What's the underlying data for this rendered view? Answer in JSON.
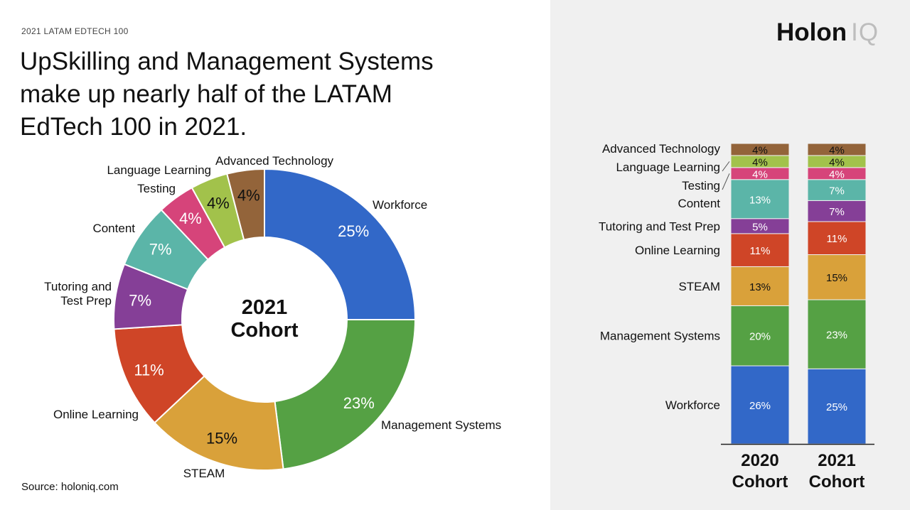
{
  "header": {
    "kicker": "2021 LATAM EDTECH 100",
    "title_lines": [
      "UpSkilling and Management Systems",
      "make up nearly half of the LATAM",
      "EdTech 100 in 2021."
    ]
  },
  "brand": {
    "part1": "Holon",
    "part2": "IQ"
  },
  "footer": {
    "source": "Source: holoniq.com"
  },
  "colors": {
    "Workforce": "#3268c8",
    "Management Systems": "#55a144",
    "STEAM": "#d9a13a",
    "Online Learning": "#cf4527",
    "Tutoring and Test Prep": "#853f97",
    "Content": "#5bb5a8",
    "Testing": "#d6447a",
    "Language Learning": "#a2c24b",
    "Advanced Technology": "#93643a",
    "right_panel_bg": "#f0f0f0"
  },
  "chart_data": [
    {
      "type": "pie",
      "variant": "donut",
      "center_label": [
        "2021",
        "Cohort"
      ],
      "slices": [
        {
          "label": "Workforce",
          "value": 25,
          "text": "25%"
        },
        {
          "label": "Management Systems",
          "value": 23,
          "text": "23%"
        },
        {
          "label": "STEAM",
          "value": 15,
          "text": "15%"
        },
        {
          "label": "Online Learning",
          "value": 11,
          "text": "11%"
        },
        {
          "label": "Tutoring and\nTest Prep",
          "key": "Tutoring and Test Prep",
          "value": 7,
          "text": "7%"
        },
        {
          "label": "Content",
          "value": 7,
          "text": "7%"
        },
        {
          "label": "Testing",
          "value": 4,
          "text": "4%"
        },
        {
          "label": "Language Learning",
          "value": 4,
          "text": "4%"
        },
        {
          "label": "Advanced Technology",
          "value": 4,
          "text": "4%"
        }
      ]
    },
    {
      "type": "bar",
      "stacked": true,
      "normalized": true,
      "categories": [
        "2020 Cohort",
        "2021 Cohort"
      ],
      "category_label_lines": [
        [
          "2020",
          "Cohort"
        ],
        [
          "2021",
          "Cohort"
        ]
      ],
      "series": [
        {
          "name": "Workforce",
          "values": [
            26,
            25
          ]
        },
        {
          "name": "Management Systems",
          "values": [
            20,
            23
          ]
        },
        {
          "name": "STEAM",
          "values": [
            13,
            15
          ]
        },
        {
          "name": "Online Learning",
          "values": [
            11,
            11
          ]
        },
        {
          "name": "Tutoring and Test Prep",
          "values": [
            5,
            7
          ]
        },
        {
          "name": "Content",
          "values": [
            13,
            7
          ]
        },
        {
          "name": "Testing",
          "values": [
            4,
            4
          ]
        },
        {
          "name": "Language Learning",
          "values": [
            4,
            4
          ]
        },
        {
          "name": "Advanced Technology",
          "values": [
            4,
            4
          ]
        }
      ],
      "value_suffix": "%"
    }
  ]
}
